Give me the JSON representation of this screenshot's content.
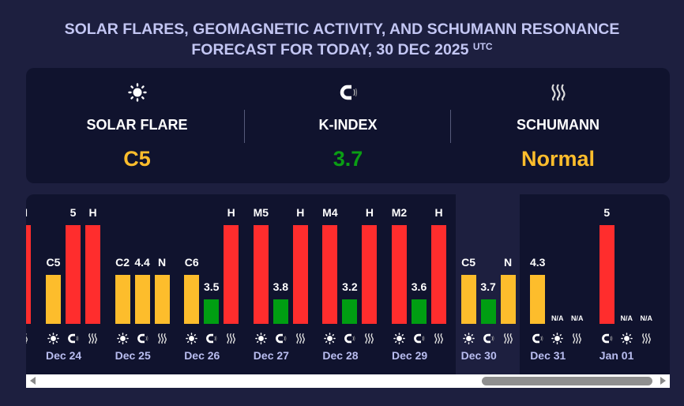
{
  "title": {
    "line1": "SOLAR FLARES, GEOMAGNETIC ACTIVITY, AND SCHUMANN RESONANCE",
    "line2": "FORECAST FOR TODAY, 30 DEC 2025",
    "tz": "UTC"
  },
  "summary": [
    {
      "icon": "sun",
      "label": "SOLAR FLARE",
      "value": "C5",
      "color": "#fdbd2c"
    },
    {
      "icon": "magnet",
      "label": "K-INDEX",
      "value": "3.7",
      "color": "#0a9e14"
    },
    {
      "icon": "waves",
      "label": "SCHUMANN",
      "value": "Normal",
      "color": "#fdbd2c"
    }
  ],
  "colors": {
    "high": "#ff2d2d",
    "medium": "#fdbd2c",
    "low": "#009e12"
  },
  "days": [
    {
      "date": "",
      "partial": true,
      "bars": [
        {
          "icon": "waves",
          "label": "H",
          "level": "high"
        }
      ]
    },
    {
      "date": "Dec 24",
      "bars": [
        {
          "icon": "sun",
          "label": "C5",
          "level": "medium"
        },
        {
          "icon": "magnet",
          "label": "5",
          "level": "high"
        },
        {
          "icon": "waves",
          "label": "H",
          "level": "high"
        }
      ]
    },
    {
      "date": "Dec 25",
      "bars": [
        {
          "icon": "sun",
          "label": "C2",
          "level": "medium"
        },
        {
          "icon": "magnet",
          "label": "4.4",
          "level": "medium"
        },
        {
          "icon": "waves",
          "label": "N",
          "level": "medium"
        }
      ]
    },
    {
      "date": "Dec 26",
      "bars": [
        {
          "icon": "sun",
          "label": "C6",
          "level": "medium"
        },
        {
          "icon": "magnet",
          "label": "3.5",
          "level": "low"
        },
        {
          "icon": "waves",
          "label": "H",
          "level": "high"
        }
      ]
    },
    {
      "date": "Dec 27",
      "bars": [
        {
          "icon": "sun",
          "label": "M5",
          "level": "high"
        },
        {
          "icon": "magnet",
          "label": "3.8",
          "level": "low"
        },
        {
          "icon": "waves",
          "label": "H",
          "level": "high"
        }
      ]
    },
    {
      "date": "Dec 28",
      "bars": [
        {
          "icon": "sun",
          "label": "M4",
          "level": "high"
        },
        {
          "icon": "magnet",
          "label": "3.2",
          "level": "low"
        },
        {
          "icon": "waves",
          "label": "H",
          "level": "high"
        }
      ]
    },
    {
      "date": "Dec 29",
      "bars": [
        {
          "icon": "sun",
          "label": "M2",
          "level": "high"
        },
        {
          "icon": "magnet",
          "label": "3.6",
          "level": "low"
        },
        {
          "icon": "waves",
          "label": "H",
          "level": "high"
        }
      ]
    },
    {
      "date": "Dec 30",
      "today": true,
      "bars": [
        {
          "icon": "sun",
          "label": "C5",
          "level": "medium"
        },
        {
          "icon": "magnet",
          "label": "3.7",
          "level": "low"
        },
        {
          "icon": "waves",
          "label": "N",
          "level": "medium"
        }
      ]
    },
    {
      "date": "Dec 31",
      "bars": [
        {
          "icon": "magnet",
          "label": "4.3",
          "level": "medium"
        },
        {
          "icon": "sun",
          "label": "N/A",
          "level": "na"
        },
        {
          "icon": "waves",
          "label": "N/A",
          "level": "na"
        }
      ]
    },
    {
      "date": "Jan 01",
      "bars": [
        {
          "icon": "magnet",
          "label": "5",
          "level": "high"
        },
        {
          "icon": "sun",
          "label": "N/A",
          "level": "na"
        },
        {
          "icon": "waves",
          "label": "N/A",
          "level": "na"
        }
      ]
    }
  ]
}
